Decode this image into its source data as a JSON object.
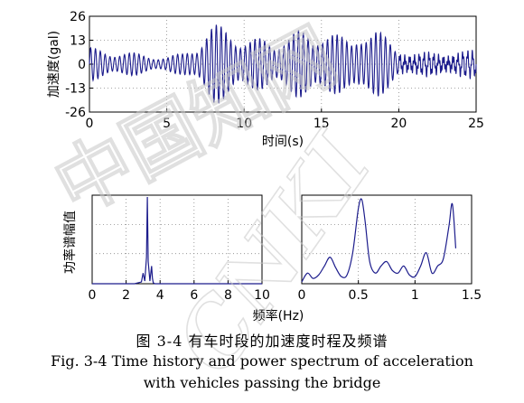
{
  "chart_data": [
    {
      "id": "time_history",
      "type": "line",
      "xlabel": "时间(s)",
      "ylabel": "加速度(gal)",
      "xlim": [
        0,
        25
      ],
      "ylim": [
        -26,
        26
      ],
      "xticks": [
        0,
        5,
        10,
        15,
        20,
        25
      ],
      "yticks": [
        26,
        13,
        0,
        -13,
        -26
      ],
      "grid": true,
      "color": "#1c1c8c",
      "envelope": {
        "t": [
          0,
          1,
          2,
          3,
          4,
          5,
          6,
          7,
          7.5,
          8,
          9,
          10,
          11,
          12,
          12.5,
          13,
          13.5,
          14,
          14.5,
          15,
          15.5,
          16,
          16.5,
          17,
          17.5,
          18,
          18.5,
          19,
          19.5,
          20,
          21,
          22,
          23,
          24,
          25
        ],
        "amplitude": [
          9,
          8,
          7,
          6,
          5,
          4,
          6,
          12,
          19,
          22,
          20,
          16,
          14,
          12,
          18,
          20,
          19,
          16,
          14,
          22,
          24,
          18,
          13,
          12,
          20,
          24,
          22,
          16,
          11,
          7,
          5,
          5,
          5,
          6,
          6
        ]
      }
    },
    {
      "id": "spectrum_left",
      "type": "line",
      "xlabel": "频率(Hz)",
      "ylabel": "功率谱幅值",
      "xlim": [
        0,
        10
      ],
      "ylim": [
        0,
        1
      ],
      "xticks": [
        0,
        2,
        4,
        6,
        8,
        10
      ],
      "grid": true,
      "color": "#1c1c8c",
      "x": [
        0,
        2.5,
        2.9,
        3.0,
        3.1,
        3.2,
        3.25,
        3.3,
        3.4,
        3.5,
        3.55,
        3.6,
        3.7,
        4.5,
        10
      ],
      "y": [
        0,
        0,
        0.02,
        0.12,
        0.03,
        0.3,
        0.98,
        0.25,
        0.03,
        0.2,
        0.06,
        0.01,
        0,
        0,
        0
      ]
    },
    {
      "id": "spectrum_right",
      "type": "line",
      "xlim": [
        0,
        1.5
      ],
      "ylim": [
        0,
        1
      ],
      "xticks": [
        0,
        0.5,
        1,
        1.5
      ],
      "grid": true,
      "color": "#1c1c8c",
      "x": [
        0,
        0.05,
        0.1,
        0.15,
        0.2,
        0.25,
        0.3,
        0.35,
        0.4,
        0.45,
        0.5,
        0.53,
        0.56,
        0.6,
        0.65,
        0.7,
        0.75,
        0.8,
        0.85,
        0.9,
        0.95,
        1.0,
        1.05,
        1.1,
        1.15,
        1.2,
        1.25,
        1.3,
        1.33,
        1.36
      ],
      "y": [
        0.02,
        0.12,
        0.06,
        0.1,
        0.2,
        0.3,
        0.18,
        0.08,
        0.1,
        0.35,
        0.85,
        0.95,
        0.7,
        0.25,
        0.12,
        0.2,
        0.25,
        0.15,
        0.12,
        0.2,
        0.1,
        0.08,
        0.2,
        0.35,
        0.12,
        0.2,
        0.28,
        0.65,
        0.9,
        0.4
      ]
    }
  ],
  "caption": {
    "cn": "图 3-4 有车时段的加速度时程及频谱",
    "en_line1": "Fig. 3-4 Time history and power spectrum of acceleration",
    "en_line2": "with vehicles passing the bridge"
  },
  "watermark": {
    "text_cn": "中国知网",
    "text_en": "CNKI"
  }
}
